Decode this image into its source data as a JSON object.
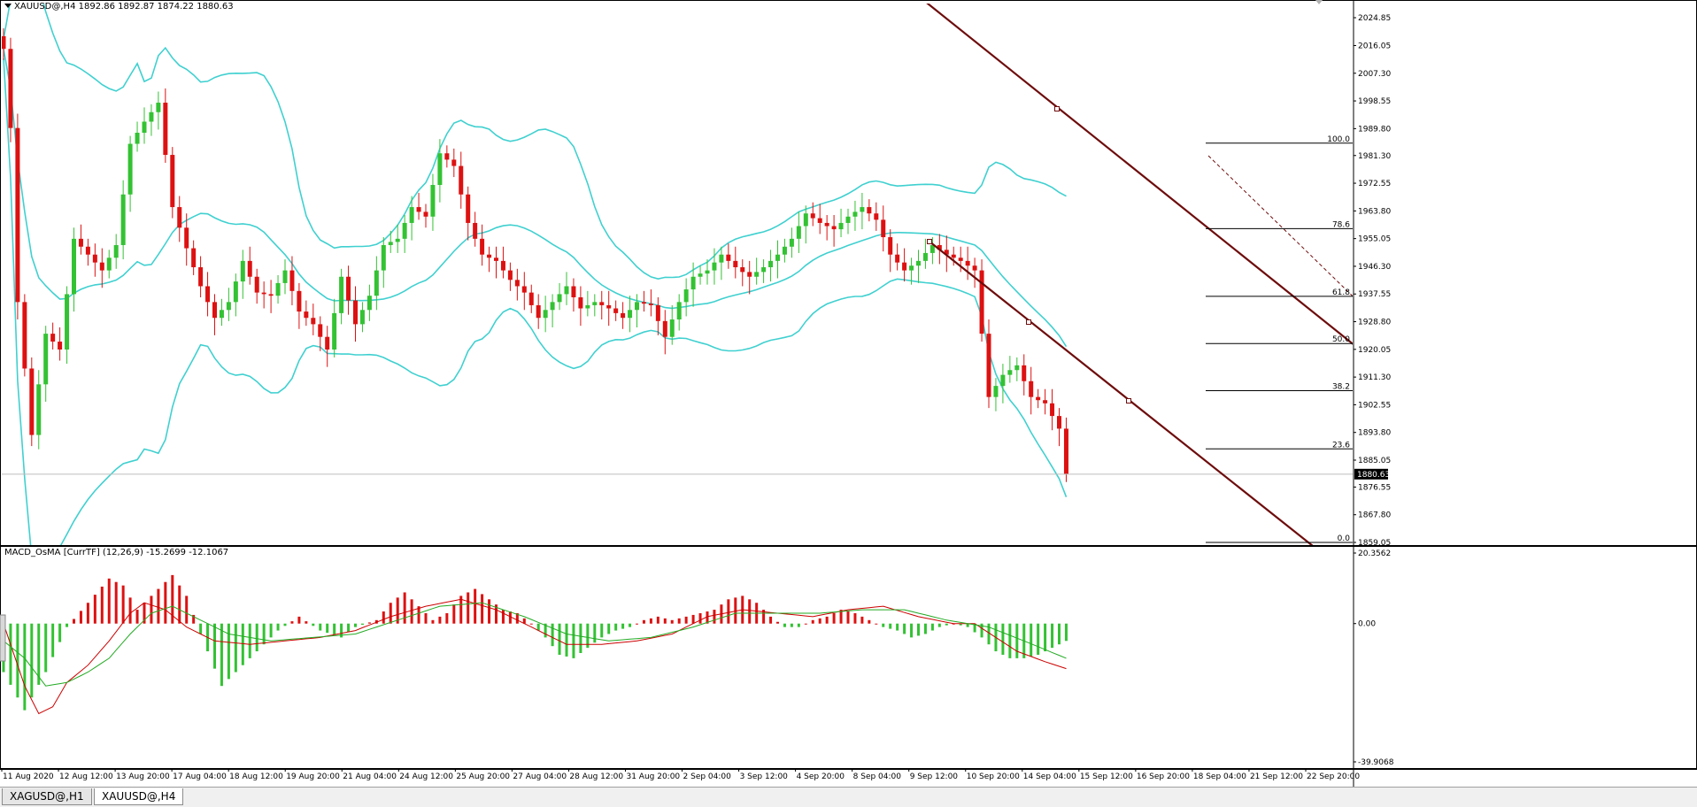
{
  "chart_header": {
    "symbol_info": "XAUUSD@,H4  1892.86 1892.87 1874.22 1880.63",
    "indicator_info": "MACD_OsMA [CurrTF] (12,26,9) -15.2699 -12.1067"
  },
  "tabs": [
    {
      "label": "XAGUSD@,H1",
      "active": false
    },
    {
      "label": "XAUUSD@,H4",
      "active": true
    }
  ],
  "colors": {
    "bull": "#33c233",
    "bear": "#dd1111",
    "bands": "#40d0d0",
    "channel": "#6e0c0c",
    "fib": "#000000",
    "macd_line": "#cc0000",
    "signal_line": "#22aa22"
  },
  "chart_data": [
    {
      "type": "candlestick",
      "symbol": "XAUUSD@",
      "timeframe": "H4",
      "price_axis_labels": [
        "2024.85",
        "2016.05",
        "2007.30",
        "1998.55",
        "1989.80",
        "1981.30",
        "1972.55",
        "1963.80",
        "1955.05",
        "1946.30",
        "1937.55",
        "1928.80",
        "1920.05",
        "1911.30",
        "1902.55",
        "1893.80",
        "1885.05",
        "1876.55",
        "1867.80",
        "1859.05"
      ],
      "ylim": [
        1859.05,
        2024.85
      ],
      "current_price": "1880.63",
      "time_axis_labels": [
        "11 Aug 2020",
        "12 Aug 12:00",
        "13 Aug 20:00",
        "17 Aug 04:00",
        "18 Aug 12:00",
        "19 Aug 20:00",
        "21 Aug 04:00",
        "24 Aug 12:00",
        "25 Aug 20:00",
        "27 Aug 04:00",
        "28 Aug 12:00",
        "31 Aug 20:00",
        "2 Sep 04:00",
        "3 Sep 12:00",
        "4 Sep 20:00",
        "8 Sep 04:00",
        "9 Sep 12:00",
        "10 Sep 20:00",
        "14 Sep 04:00",
        "15 Sep 12:00",
        "16 Sep 20:00",
        "18 Sep 04:00",
        "21 Sep 12:00",
        "22 Sep 20:00"
      ],
      "close_path": [
        [
          0,
          2015
        ],
        [
          1,
          1990
        ],
        [
          2,
          1935
        ],
        [
          4,
          1893
        ],
        [
          6,
          1925
        ],
        [
          8,
          1920
        ],
        [
          10,
          1955
        ],
        [
          12,
          1950
        ],
        [
          14,
          1945
        ],
        [
          16,
          1953
        ],
        [
          18,
          1985
        ],
        [
          20,
          1992
        ],
        [
          22,
          1998
        ],
        [
          24,
          1965
        ],
        [
          26,
          1952
        ],
        [
          28,
          1940
        ],
        [
          30,
          1930
        ],
        [
          32,
          1935
        ],
        [
          34,
          1948
        ],
        [
          36,
          1938
        ],
        [
          38,
          1937
        ],
        [
          40,
          1945
        ],
        [
          42,
          1932
        ],
        [
          44,
          1928
        ],
        [
          46,
          1920
        ],
        [
          48,
          1943
        ],
        [
          50,
          1928
        ],
        [
          52,
          1937
        ],
        [
          54,
          1953
        ],
        [
          56,
          1955
        ],
        [
          58,
          1965
        ],
        [
          60,
          1962
        ],
        [
          62,
          1982
        ],
        [
          64,
          1978
        ],
        [
          66,
          1960
        ],
        [
          68,
          1950
        ],
        [
          70,
          1948
        ],
        [
          72,
          1942
        ],
        [
          74,
          1938
        ],
        [
          76,
          1930
        ],
        [
          78,
          1935
        ],
        [
          80,
          1940
        ],
        [
          82,
          1933
        ],
        [
          84,
          1935
        ],
        [
          86,
          1933
        ],
        [
          88,
          1930
        ],
        [
          90,
          1935
        ],
        [
          92,
          1934
        ],
        [
          94,
          1924
        ],
        [
          96,
          1935
        ],
        [
          98,
          1943
        ],
        [
          100,
          1945
        ],
        [
          102,
          1950
        ],
        [
          104,
          1946
        ],
        [
          106,
          1943
        ],
        [
          108,
          1946
        ],
        [
          110,
          1950
        ],
        [
          112,
          1955
        ],
        [
          114,
          1963
        ],
        [
          116,
          1960
        ],
        [
          118,
          1958
        ],
        [
          120,
          1962
        ],
        [
          122,
          1965
        ],
        [
          124,
          1961
        ],
        [
          126,
          1950
        ],
        [
          128,
          1945
        ],
        [
          130,
          1948
        ],
        [
          132,
          1953
        ],
        [
          134,
          1950
        ],
        [
          136,
          1948
        ],
        [
          138,
          1945
        ],
        [
          140,
          1905
        ],
        [
          142,
          1912
        ],
        [
          144,
          1915
        ],
        [
          146,
          1905
        ],
        [
          148,
          1903
        ],
        [
          150,
          1895
        ],
        [
          151,
          1880.63
        ]
      ],
      "fibonacci_levels": [
        {
          "label": "100.0",
          "price": 1985.2
        },
        {
          "label": "78.6",
          "price": 1958.2
        },
        {
          "label": "61.8",
          "price": 1936.8
        },
        {
          "label": "50.0",
          "price": 1921.9
        },
        {
          "label": "38.2",
          "price": 1907.0
        },
        {
          "label": "23.6",
          "price": 1888.6
        },
        {
          "label": "0.0",
          "price": 1859.05
        }
      ]
    },
    {
      "type": "bar",
      "name": "MACD_OsMA",
      "axis_labels": [
        "20.3562",
        "0.00",
        "-39.9068"
      ],
      "ylim": [
        -39.9068,
        20.3562
      ],
      "histogram_keyframes": [
        [
          0,
          -14
        ],
        [
          3,
          -25
        ],
        [
          6,
          -14
        ],
        [
          9,
          -1
        ],
        [
          12,
          6
        ],
        [
          15,
          13
        ],
        [
          17,
          11
        ],
        [
          19,
          4
        ],
        [
          21,
          8
        ],
        [
          24,
          14
        ],
        [
          26,
          8
        ],
        [
          28,
          -3
        ],
        [
          31,
          -18
        ],
        [
          34,
          -12
        ],
        [
          37,
          -6
        ],
        [
          39,
          -2
        ],
        [
          42,
          2
        ],
        [
          45,
          -2
        ],
        [
          48,
          -4
        ],
        [
          50,
          -1
        ],
        [
          53,
          1
        ],
        [
          55,
          6
        ],
        [
          57,
          9
        ],
        [
          59,
          5
        ],
        [
          61,
          1
        ],
        [
          63,
          3
        ],
        [
          65,
          8
        ],
        [
          67,
          10
        ],
        [
          69,
          7
        ],
        [
          71,
          4
        ],
        [
          73,
          3
        ],
        [
          75,
          0
        ],
        [
          77,
          -4
        ],
        [
          79,
          -9
        ],
        [
          81,
          -10
        ],
        [
          83,
          -7
        ],
        [
          85,
          -4
        ],
        [
          87,
          -2
        ],
        [
          89,
          -1
        ],
        [
          91,
          1
        ],
        [
          93,
          2
        ],
        [
          95,
          1
        ],
        [
          97,
          2
        ],
        [
          99,
          3
        ],
        [
          101,
          4
        ],
        [
          103,
          7
        ],
        [
          105,
          8
        ],
        [
          107,
          6
        ],
        [
          109,
          2
        ],
        [
          111,
          -1
        ],
        [
          113,
          -1
        ],
        [
          115,
          1
        ],
        [
          117,
          2
        ],
        [
          119,
          4
        ],
        [
          121,
          3
        ],
        [
          123,
          1
        ],
        [
          125,
          -1
        ],
        [
          127,
          -2
        ],
        [
          129,
          -4
        ],
        [
          131,
          -3
        ],
        [
          133,
          -1
        ],
        [
          135,
          0
        ],
        [
          137,
          -1
        ],
        [
          139,
          -4
        ],
        [
          141,
          -8
        ],
        [
          143,
          -10
        ],
        [
          145,
          -10
        ],
        [
          147,
          -9
        ],
        [
          149,
          -7
        ],
        [
          151,
          -5
        ]
      ],
      "macd_keyframes": [
        [
          0,
          0
        ],
        [
          3,
          -18
        ],
        [
          5,
          -26
        ],
        [
          7,
          -24
        ],
        [
          9,
          -17
        ],
        [
          12,
          -12
        ],
        [
          15,
          -5
        ],
        [
          18,
          3
        ],
        [
          20,
          6
        ],
        [
          23,
          4
        ],
        [
          26,
          -1
        ],
        [
          30,
          -5
        ],
        [
          35,
          -6
        ],
        [
          40,
          -5
        ],
        [
          45,
          -4
        ],
        [
          50,
          -2
        ],
        [
          55,
          2
        ],
        [
          60,
          5
        ],
        [
          65,
          7
        ],
        [
          70,
          4
        ],
        [
          75,
          -1
        ],
        [
          80,
          -6
        ],
        [
          85,
          -6
        ],
        [
          90,
          -5
        ],
        [
          95,
          -3
        ],
        [
          100,
          2
        ],
        [
          105,
          4
        ],
        [
          110,
          3
        ],
        [
          115,
          2
        ],
        [
          120,
          4
        ],
        [
          125,
          5
        ],
        [
          130,
          2
        ],
        [
          135,
          0
        ],
        [
          138,
          0
        ],
        [
          141,
          -4
        ],
        [
          144,
          -8
        ],
        [
          148,
          -11
        ],
        [
          151,
          -13
        ]
      ],
      "signal_keyframes": [
        [
          0,
          -5
        ],
        [
          3,
          -10
        ],
        [
          6,
          -18
        ],
        [
          9,
          -17
        ],
        [
          12,
          -14
        ],
        [
          15,
          -10
        ],
        [
          18,
          -3
        ],
        [
          21,
          3
        ],
        [
          24,
          5
        ],
        [
          28,
          1
        ],
        [
          32,
          -3
        ],
        [
          38,
          -5
        ],
        [
          44,
          -4
        ],
        [
          50,
          -3
        ],
        [
          56,
          1
        ],
        [
          62,
          5
        ],
        [
          68,
          6
        ],
        [
          74,
          2
        ],
        [
          80,
          -3
        ],
        [
          86,
          -5
        ],
        [
          92,
          -4
        ],
        [
          98,
          -1
        ],
        [
          104,
          3
        ],
        [
          110,
          3
        ],
        [
          116,
          3
        ],
        [
          122,
          4
        ],
        [
          128,
          4
        ],
        [
          134,
          1
        ],
        [
          140,
          -1
        ],
        [
          145,
          -5
        ],
        [
          151,
          -10
        ]
      ]
    }
  ]
}
